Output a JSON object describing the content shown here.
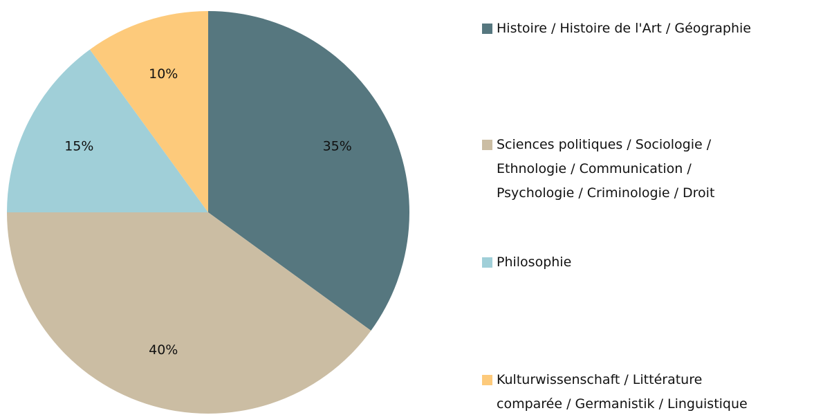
{
  "chart_data": {
    "type": "pie",
    "categories": [
      "Histoire / Histoire de l'Art / Géographie",
      "Sciences politiques / Sociologie / Ethnologie / Communication / Psychologie / Criminologie / Droit",
      "Philosophie",
      "Kulturwissenschaft / Littérature comparée / Germanistik / Linguistique"
    ],
    "values": [
      35,
      40,
      15,
      10
    ],
    "value_labels": [
      "35%",
      "40%",
      "15%",
      "10%"
    ],
    "colors": [
      "#56777f",
      "#cbbda3",
      "#a0cfd8",
      "#fdca7b"
    ],
    "legend": "right"
  }
}
